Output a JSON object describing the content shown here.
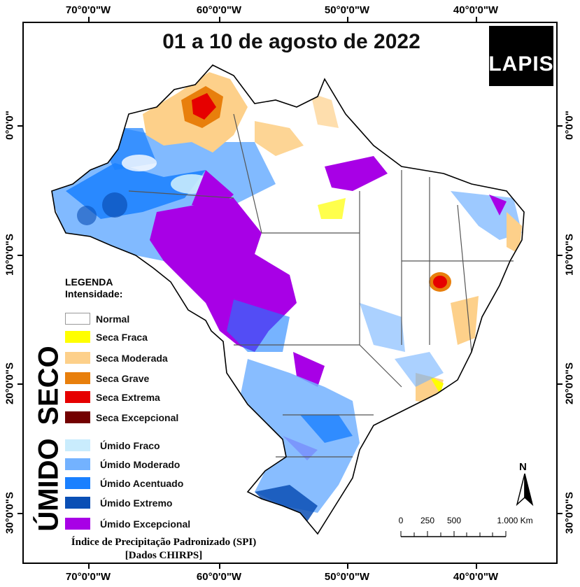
{
  "map": {
    "title": "01 a 10 de agosto de 2022",
    "logo": "LAPIS",
    "axes": {
      "top": [
        "70°0'0\"W",
        "60°0'0\"W",
        "50°0'0\"W",
        "40°0'0\"W"
      ],
      "bottom": [
        "70°0'0\"W",
        "60°0'0\"W",
        "50°0'0\"W",
        "40°0'0\"W"
      ],
      "left": [
        "0°0'0\"",
        "10°0'0\"S",
        "20°0'0\"S",
        "30°0'0\"S"
      ],
      "right": [
        "0°0'0\"",
        "10°0'0\"S",
        "20°0'0\"S",
        "30°0'0\"S"
      ]
    },
    "legend": {
      "heading": "LEGENDA",
      "subheading": "Intensidade:",
      "normal": "Normal",
      "dry_group_label": "SECO",
      "wet_group_label": "ÚMIDO",
      "dry_items": [
        {
          "label": "Seca Fraca",
          "color": "#ffff00"
        },
        {
          "label": "Seca Moderada",
          "color": "#fdd08a"
        },
        {
          "label": "Seca Grave",
          "color": "#e87f0c"
        },
        {
          "label": "Seca Extrema",
          "color": "#e60000"
        },
        {
          "label": "Seca Excepcional",
          "color": "#730000"
        }
      ],
      "wet_items": [
        {
          "label": "Úmido Fraco",
          "color": "#c9ecfd"
        },
        {
          "label": "Úmido Moderado",
          "color": "#73b2ff"
        },
        {
          "label": "Úmido Acentuado",
          "color": "#1a80ff"
        },
        {
          "label": "Úmido Extremo",
          "color": "#0a4fb5"
        },
        {
          "label": "Úmido Excepcional",
          "color": "#a800e6"
        }
      ]
    },
    "source_line1": "Índice de Precipitação Padronizado (SPI)",
    "source_line2": "[Dados CHIRPS]",
    "north_label": "N",
    "scale": {
      "labels": [
        "0",
        "250",
        "500",
        "1.000 Km"
      ]
    }
  }
}
